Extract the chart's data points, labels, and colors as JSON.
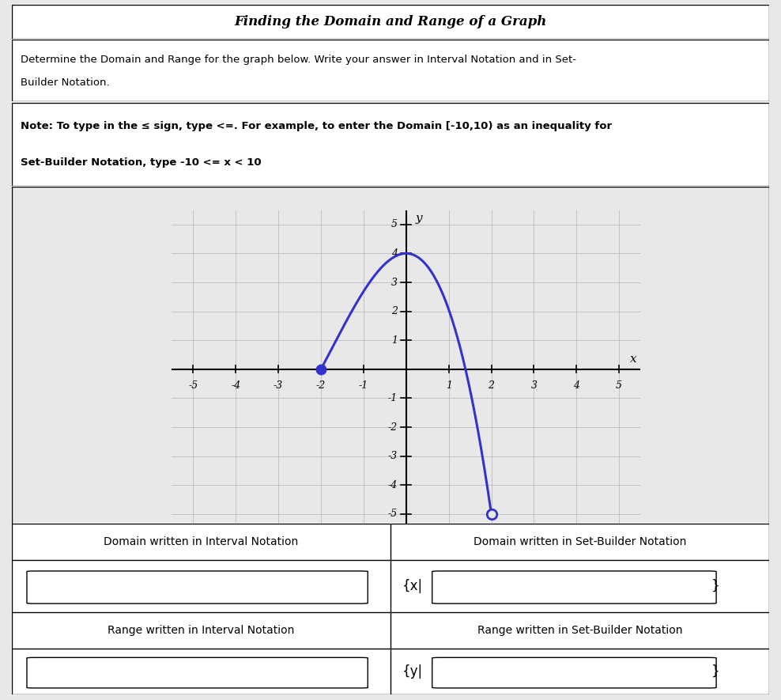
{
  "title": "Finding the Domain and Range of a Graph",
  "instruction_line1": "Determine the Domain and Range for the graph below. Write your answer in Interval Notation and in Set-",
  "instruction_line2": "Builder Notation.",
  "note_line1": "Note: To type in the ≤ sign, type <=. For example, to enter the Domain [-10,10) as an inequality for",
  "note_line2": "Set-Builder Notation, type -10 <= x < 10",
  "domain_interval_label": "Domain written in Interval Notation",
  "domain_setbuilder_label": "Domain written in Set-Builder Notation",
  "range_interval_label": "Range written in Interval Notation",
  "range_setbuilder_label": "Range written in Set-Builder Notation",
  "x_label": "x",
  "y_label": "y",
  "x_ticks": [
    -5,
    -4,
    -3,
    -2,
    -1,
    1,
    2,
    3,
    4,
    5
  ],
  "y_ticks": [
    -5,
    -4,
    -3,
    -2,
    -1,
    1,
    2,
    3,
    4,
    5
  ],
  "x_lim": [
    -5.5,
    5.5
  ],
  "y_lim": [
    -5.5,
    5.5
  ],
  "closed_dot": [
    -2,
    0
  ],
  "open_dot": [
    2,
    -5
  ],
  "curve_color": "#3333cc",
  "dot_color": "#3333cc",
  "grid_color": "#bbbbbb",
  "bg_color": "#e8e8e8",
  "white": "#ffffff",
  "black": "#000000",
  "set_builder_x_prefix": "{x|",
  "set_builder_y_prefix": "{y|",
  "set_builder_suffix": "}",
  "poly_a": -0.3125,
  "poly_b": -1.625,
  "poly_c": 0.0,
  "poly_d": 4.0
}
